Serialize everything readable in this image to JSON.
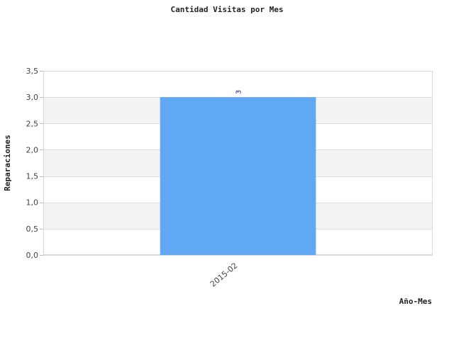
{
  "chart_data": {
    "type": "bar",
    "title": "Cantidad Visitas por Mes",
    "xlabel": "Año-Mes",
    "ylabel": "Reparaciones",
    "categories": [
      "2015-02"
    ],
    "values": [
      3
    ],
    "data_labels": [
      "3"
    ],
    "ylim": [
      0,
      3.5
    ],
    "yticks": [
      0,
      0.5,
      1,
      1.5,
      2,
      2.5,
      3,
      3.5
    ],
    "ytick_labels": [
      "0,0",
      "0,5",
      "1,0",
      "1,5",
      "2,0",
      "2,5",
      "3,0",
      "3,5"
    ],
    "grid": true,
    "legend": "none",
    "colors": {
      "bar": "#60a8f4",
      "band": "#f3f3f3",
      "grid": "#dcdcdc",
      "data_label": "#1a1a8c"
    }
  }
}
